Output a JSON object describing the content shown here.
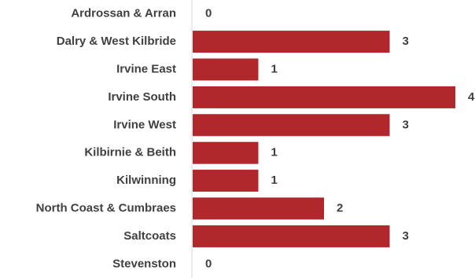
{
  "chart_data": {
    "type": "bar",
    "orientation": "horizontal",
    "categories": [
      "Ardrossan & Arran",
      "Dalry & West Kilbride",
      "Irvine East",
      "Irvine South",
      "Irvine West",
      "Kilbirnie & Beith",
      "Kilwinning",
      "North Coast & Cumbraes",
      "Saltcoats",
      "Stevenston"
    ],
    "values": [
      0,
      3,
      1,
      4,
      3,
      1,
      1,
      2,
      3,
      0
    ],
    "value_labels": [
      "0",
      "3",
      "1",
      "4",
      "3",
      "1",
      "1",
      "2",
      "3",
      "0"
    ],
    "xlim": [
      0,
      4
    ],
    "grid": false,
    "legend": "none",
    "bar_color": "#B0282C",
    "axis_color": "#D9D9D9",
    "text_color": "#404040"
  }
}
